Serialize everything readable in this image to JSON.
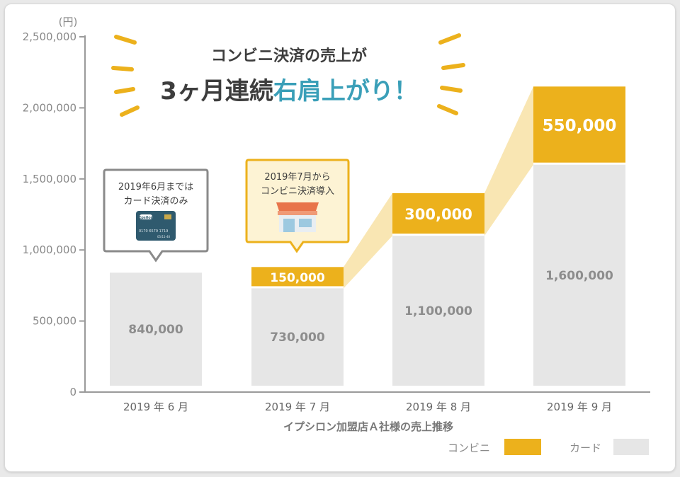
{
  "headline": {
    "line1": "コンビニ決済の売上が",
    "line2_a": "3ヶ月連続",
    "line2_b": "右肩上がり！"
  },
  "callouts": {
    "june": {
      "line1": "2019年6月までは",
      "line2": "カード決済のみ",
      "card_brand": "Epsilon",
      "card_number": "0170 6579 1719",
      "card_expiry": "05/11-40"
    },
    "july": {
      "line1": "2019年7月から",
      "line2": "コンビニ決済導入"
    }
  },
  "colors": {
    "konbini": "#ecb11c",
    "card": "#e6e6e6",
    "callout_border_gray": "#8a8a8a",
    "callout_border_gold": "#ecb11c",
    "accent_teal": "#3a9fb8",
    "headline_dark": "#3d3d3d"
  },
  "chart_data": {
    "type": "bar",
    "stacked": true,
    "categories": [
      "2019 年 6 月",
      "2019 年 7 月",
      "2019 年 8 月",
      "2019 年 9 月"
    ],
    "series": [
      {
        "name": "カード",
        "values": [
          840000,
          730000,
          1100000,
          1600000
        ],
        "labels": [
          "840,000",
          "730,000",
          "1,100,000",
          "1,600,000"
        ]
      },
      {
        "name": "コンビニ",
        "values": [
          0,
          150000,
          300000,
          550000
        ],
        "labels": [
          "",
          "150,000",
          "300,000",
          "550,000"
        ]
      }
    ],
    "y_unit": "(円)",
    "y_ticks": [
      "0",
      "500,000",
      "1,000,000",
      "1,500,000",
      "2,000,000",
      "2,500,000"
    ],
    "ylim": [
      0,
      2500000
    ],
    "xlabel": "イプシロン加盟店Ａ社様の売上推移",
    "legend": [
      {
        "name": "コンビニ",
        "color": "#ecb11c"
      },
      {
        "name": "カード",
        "color": "#e6e6e6"
      }
    ],
    "legend_position": "bottom-right",
    "grid": false
  }
}
